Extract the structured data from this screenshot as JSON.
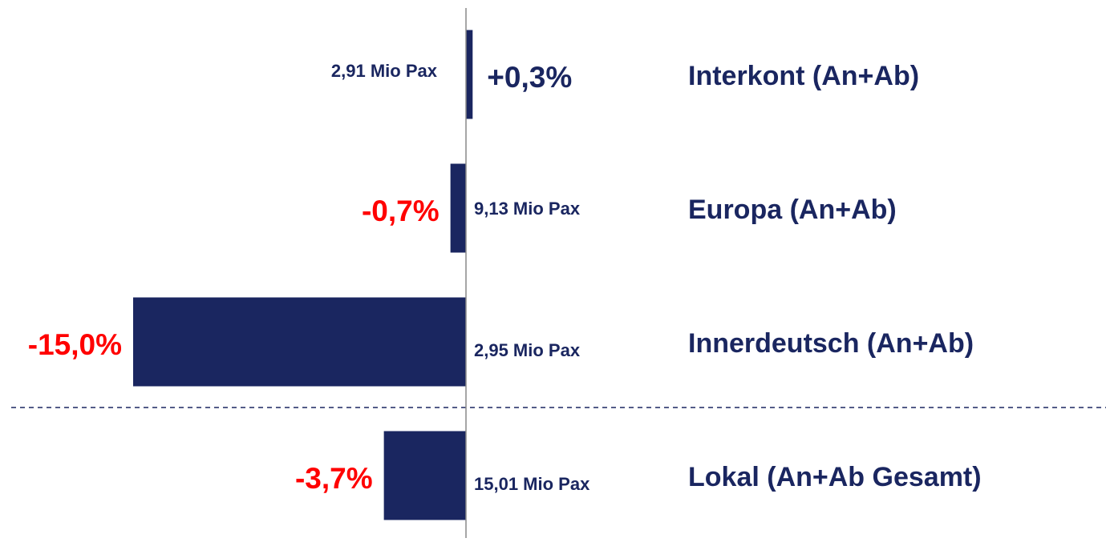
{
  "chart_data": {
    "type": "hbar",
    "categories": [
      "Interkont (An+Ab)",
      "Europa (An+Ab)",
      "Innerdeutsch (An+Ab)",
      "Lokal (An+Ab Gesamt)"
    ],
    "values": [
      0.3,
      -0.7,
      -15.0,
      -3.7
    ],
    "value_labels": [
      "+0,3%",
      "-0,7%",
      "-15,0%",
      "-3,7%"
    ],
    "pax_labels": [
      "2,91 Mio Pax",
      "9,13 Mio Pax",
      "2,95 Mio Pax",
      "15,01 Mio Pax"
    ],
    "xlim": [
      -15,
      15
    ],
    "color": "#1a2660",
    "positive_color": "#1a2660",
    "negative_color": "#ff0000"
  }
}
